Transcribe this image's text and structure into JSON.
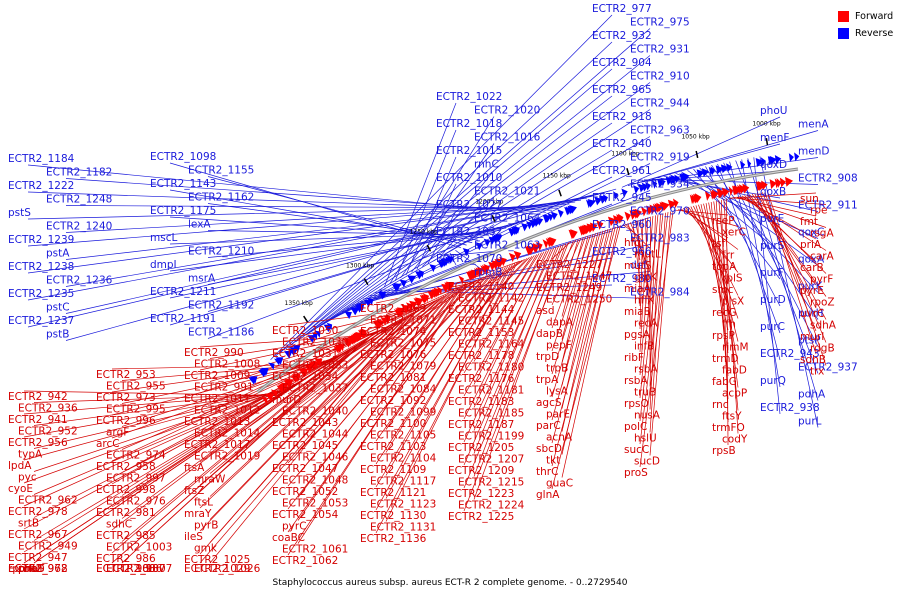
{
  "legend": {
    "forward_label": "Forward",
    "reverse_label": "Reverse",
    "forward_color": "#ff0000",
    "reverse_color": "#0000ff"
  },
  "caption": "Staphylococcus aureus subsp. aureus ECT-R 2 complete genome. - 0..2729540",
  "ticks": [
    "1000 kbp",
    "1050 kbp",
    "1100 kbp",
    "1150 kbp",
    "1200 kbp",
    "1250 kbp",
    "1300 kbp",
    "1350 kbp"
  ],
  "reverse_labels": [
    "ECTR2_977",
    "ECTR2_975",
    "ECTR2_932",
    "ECTR2_931",
    "ECTR2_904",
    "ECTR2_910",
    "ECTR2_965",
    "ECTR2_944",
    "ECTR2_918",
    "ECTR2_963",
    "ECTR2_940",
    "ECTR2_919",
    "ECTR2_961",
    "ECTR2_934",
    "ECTR2_945",
    "ECTR2_970",
    "ECTR2_960",
    "ECTR2_983",
    "ECTR2_966",
    "def",
    "ECTR2_980",
    "ECTR2_984",
    "ECTR2_1022",
    "ECTR2_1020",
    "ECTR2_1018",
    "ECTR2_1016",
    "ECTR2_1015",
    "rnhC",
    "ECTR2_1010",
    "ECTR2_1021",
    "ECTR2_1027",
    "ECTR2_1064",
    "ECTR2_1032",
    "ECTR2_1063",
    "ECTR2_1070",
    "rpmB",
    "ECTR2_1098",
    "ECTR2_1155",
    "ECTR2_1143",
    "ECTR2_1162",
    "ECTR2_1175",
    "lexA",
    "mscL",
    "ECTR2_1210",
    "dmpI",
    "msrA",
    "ECTR2_1211",
    "ECTR2_1192",
    "ECTR2_1191",
    "ECTR2_1186",
    "ECTR2_1184",
    "ECTR2_1182",
    "ECTR2_1222",
    "ECTR2_1248",
    "pstS",
    "ECTR2_1240",
    "ECTR2_1239",
    "pstA",
    "ECTR2_1238",
    "ECTR2_1236",
    "ECTR2_1235",
    "pstC",
    "ECTR2_1237",
    "pstB",
    "phoU",
    "menA",
    "menF",
    "menD",
    "qoxD",
    "ECTR2_908",
    "qoxB",
    "ECTR2_911",
    "purE",
    "qoxC",
    "purS",
    "qoxA",
    "purF",
    "purK",
    "purD",
    "purH",
    "purC",
    "ptsP",
    "ECTR2_943",
    "ECTR2_937",
    "purQ",
    "pdhA",
    "ECTR2_938",
    "purL"
  ],
  "forward_labels": [
    "ECTR2_942",
    "ECTR2_936",
    "ECTR2_941",
    "ECTR2_952",
    "ECTR2_956",
    "typA",
    "lpdA",
    "pyc",
    "cyoE",
    "ECTR2_962",
    "ECTR2_978",
    "srtB",
    "ECTR2_967",
    "ECTR2_949",
    "ECTR2_947",
    "coaD",
    "rpmF",
    "phoS",
    "ECTR2_968",
    "pheT",
    "ECTR2_972",
    "ECTR2_953",
    "ECTR2_955",
    "ECTR2_973",
    "ECTR2_995",
    "ECTR2_996",
    "argF",
    "arcC",
    "ECTR2_974",
    "ECTR2_958",
    "ECTR2_997",
    "ECTR2_998",
    "ECTR2_976",
    "ECTR2_981",
    "sdhC",
    "ECTR2_985",
    "ECTR2_1003",
    "ECTR2_986",
    "ECTR2_987",
    "ECTR2_1006",
    "ECTR2_1007",
    "ECTR2_988",
    "ECTR2_990",
    "ECTR2_1008",
    "ECTR2_1009",
    "ECTR2_991",
    "ECTR2_1011",
    "ECTR2_1012",
    "ECTR2_1013",
    "ECTR2_1014",
    "ECTR2_1017",
    "ECTR2_1019",
    "ftsA",
    "mraW",
    "ftsZ",
    "ftsL",
    "mraY",
    "pyrB",
    "ileS",
    "gmk",
    "ECTR2_1025",
    "ECTR2_1026",
    "ECTR2_1029",
    "ECTR2_1050",
    "ECTR2_1030",
    "ECTR2_1031",
    "ECTR2_1033",
    "ECTR2_1034",
    "ECTR2_1037",
    "murD",
    "ECTR2_1040",
    "ECTR2_1043",
    "ECTR2_1044",
    "ECTR2_1045",
    "ECTR2_1046",
    "ECTR2_1047",
    "ECTR2_1048",
    "ECTR2_1052",
    "ECTR2_1053",
    "ECTR2_1054",
    "pyrC",
    "coaBC",
    "ECTR2_1061",
    "ECTR2_1062",
    "ECTR2_1069",
    "ECTR2_1071",
    "ECTR2_1074",
    "ECTR2_1075",
    "ECTR2_1076",
    "ECTR2_1079",
    "ECTR2_1081",
    "ECTR2_1084",
    "ECTR2_1092",
    "ECTR2_1099",
    "ECTR2_1100",
    "ECTR2_1105",
    "ECTR2_1103",
    "ECTR2_1104",
    "ECTR2_1109",
    "ECTR2_1117",
    "ECTR2_1121",
    "ECTR2_1123",
    "ECTR2_1130",
    "ECTR2_1131",
    "ECTR2_1136",
    "ECTR2_1140",
    "ECTR2_1142",
    "ECTR2_1144",
    "ECTR2_1145",
    "ECTR2_1153",
    "ECTR2_1164",
    "ECTR2_1178",
    "ECTR2_1180",
    "ECTR2_1176",
    "ECTR2_1181",
    "ECTR2_1183",
    "ECTR2_1185",
    "ECTR2_1187",
    "ECTR2_1199",
    "ECTR2_1205",
    "ECTR2_1207",
    "ECTR2_1209",
    "ECTR2_1215",
    "ECTR2_1223",
    "ECTR2_1224",
    "ECTR2_1225",
    "ECTR2_1227",
    "ECTR2_1247",
    "ECTR2_1249",
    "ECTR2_1250",
    "asd",
    "dapA",
    "dapB",
    "pepF",
    "trpD",
    "trpB",
    "trpA",
    "lysA",
    "agcS",
    "parE",
    "parC",
    "acnA",
    "sbcD",
    "tkt",
    "thrC",
    "guaC",
    "glnA",
    "hfq",
    "mutL",
    "mutS",
    "glpK",
    "miaA",
    "hflX",
    "miaB",
    "recA",
    "pgsA",
    "infB",
    "ribF",
    "rsbA",
    "rsbA",
    "truB",
    "rpsO",
    "nusA",
    "polC",
    "hslU",
    "sucC",
    "sucD",
    "proS",
    "rseP",
    "xerC",
    "tsf",
    "frr",
    "topA",
    "rplS",
    "smc",
    "plsX",
    "recG",
    "ffh",
    "rpsP",
    "rimM",
    "trmD",
    "fabD",
    "fabG",
    "acpP",
    "rnc",
    "ftsY",
    "trmFO",
    "codY",
    "rpsB",
    "sun",
    "rpe",
    "fmt",
    "rsgA",
    "priA",
    "carA",
    "carB",
    "pyrF",
    "pyrE",
    "rpoZ",
    "uvrC",
    "sdhA",
    "murI",
    "rdgB",
    "sdhB",
    "trx"
  ]
}
